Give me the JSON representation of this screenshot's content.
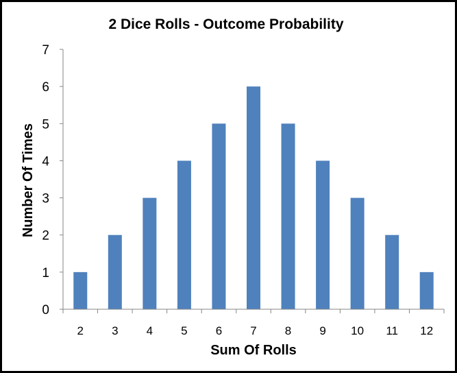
{
  "chart_data": {
    "type": "bar",
    "title": "2 Dice Rolls - Outcome Probability",
    "xlabel": "Sum Of Rolls",
    "ylabel": "Number Of Times",
    "categories": [
      "2",
      "3",
      "4",
      "5",
      "6",
      "7",
      "8",
      "9",
      "10",
      "11",
      "12"
    ],
    "values": [
      1,
      2,
      3,
      4,
      5,
      6,
      5,
      4,
      3,
      2,
      1
    ],
    "ylim": [
      0,
      7
    ],
    "yticks": [
      "0",
      "1",
      "2",
      "3",
      "4",
      "5",
      "6",
      "7"
    ],
    "grid": false,
    "legend": "none",
    "colors": {
      "bar": "#4F81BD",
      "axis": "#868686",
      "border": "#000000"
    }
  }
}
